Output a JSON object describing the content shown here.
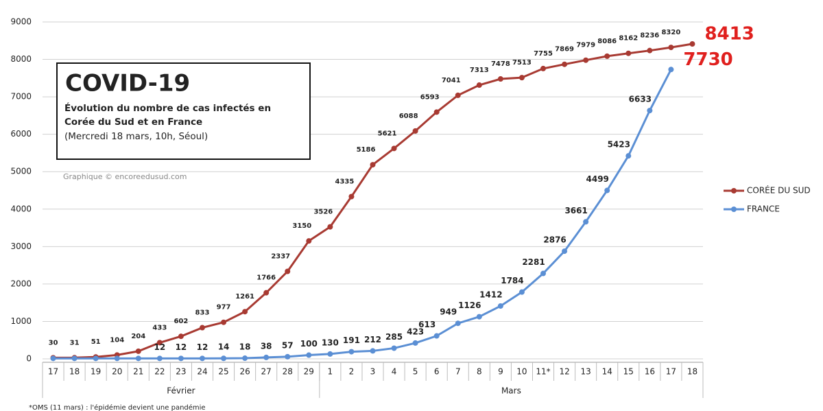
{
  "chart_data": {
    "type": "line",
    "title": "COVID-19",
    "subtitle": "Évolution du nombre de cas infectés en Corée du Sud et en France",
    "note": "(Mercredi 18 mars, 10h, Séoul)",
    "credit": "Graphique © encoreedusud.com",
    "footnote": "*OMS (11 mars) : l'épidémie devient une pandémie",
    "categories": [
      "17",
      "18",
      "19",
      "20",
      "21",
      "22",
      "23",
      "24",
      "25",
      "26",
      "27",
      "28",
      "29",
      "1",
      "2",
      "3",
      "4",
      "5",
      "6",
      "7",
      "8",
      "9",
      "10",
      "11*",
      "12",
      "13",
      "14",
      "15",
      "16",
      "17",
      "18"
    ],
    "groups": [
      {
        "label": "Février",
        "start": 0,
        "end": 12
      },
      {
        "label": "Mars",
        "start": 13,
        "end": 30
      }
    ],
    "series": [
      {
        "name": "CORÉE DU SUD",
        "color": "#a83a32",
        "values": [
          30,
          31,
          51,
          104,
          204,
          433,
          602,
          833,
          977,
          1261,
          1766,
          2337,
          3150,
          3526,
          4335,
          5186,
          5621,
          6088,
          6593,
          7041,
          7313,
          7478,
          7513,
          7755,
          7869,
          7979,
          8086,
          8162,
          8236,
          8320,
          8413
        ]
      },
      {
        "name": "FRANCE",
        "color": "#5b8fd4",
        "values": [
          12,
          12,
          12,
          12,
          12,
          12,
          12,
          12,
          14,
          18,
          38,
          57,
          100,
          130,
          191,
          212,
          285,
          423,
          613,
          949,
          1126,
          1412,
          1784,
          2281,
          2876,
          3661,
          4499,
          5423,
          6633,
          7730,
          null
        ],
        "value_labels": [
          null,
          null,
          null,
          null,
          null,
          "12",
          "12",
          "12",
          "14",
          "18",
          "38",
          "57",
          "100",
          "130",
          "191",
          "212",
          "285",
          "423",
          "613",
          "949",
          "1126",
          "1412",
          "1784",
          "2281",
          "2876",
          "3661",
          "4499",
          "5423",
          "6633",
          "7730",
          null
        ]
      }
    ],
    "ylim": [
      0,
      9000
    ],
    "yticks": [
      0,
      1000,
      2000,
      3000,
      4000,
      5000,
      6000,
      7000,
      8000,
      9000
    ],
    "grid": true,
    "legend": "right"
  }
}
